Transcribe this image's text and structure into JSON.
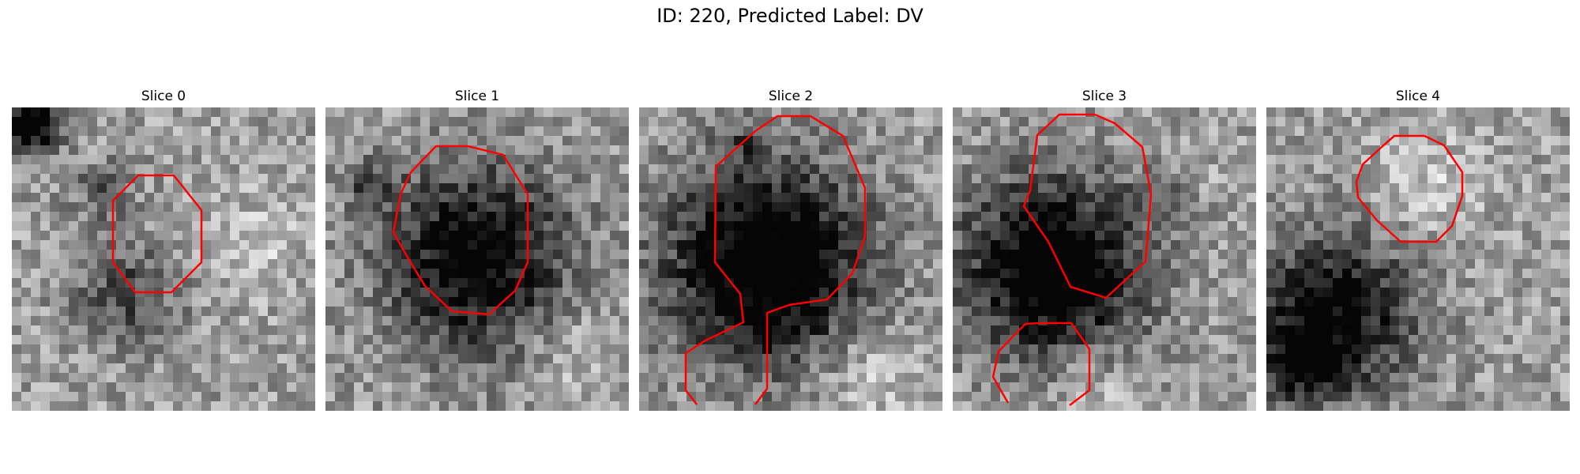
{
  "figure": {
    "title": "ID: 220, Predicted Label: DV"
  },
  "panels": [
    {
      "title": "Slice 0"
    },
    {
      "title": "Slice 1"
    },
    {
      "title": "Slice 2"
    },
    {
      "title": "Slice 3"
    },
    {
      "title": "Slice 4"
    }
  ],
  "colors": {
    "contour": "#ff0000",
    "background": "#ffffff"
  }
}
